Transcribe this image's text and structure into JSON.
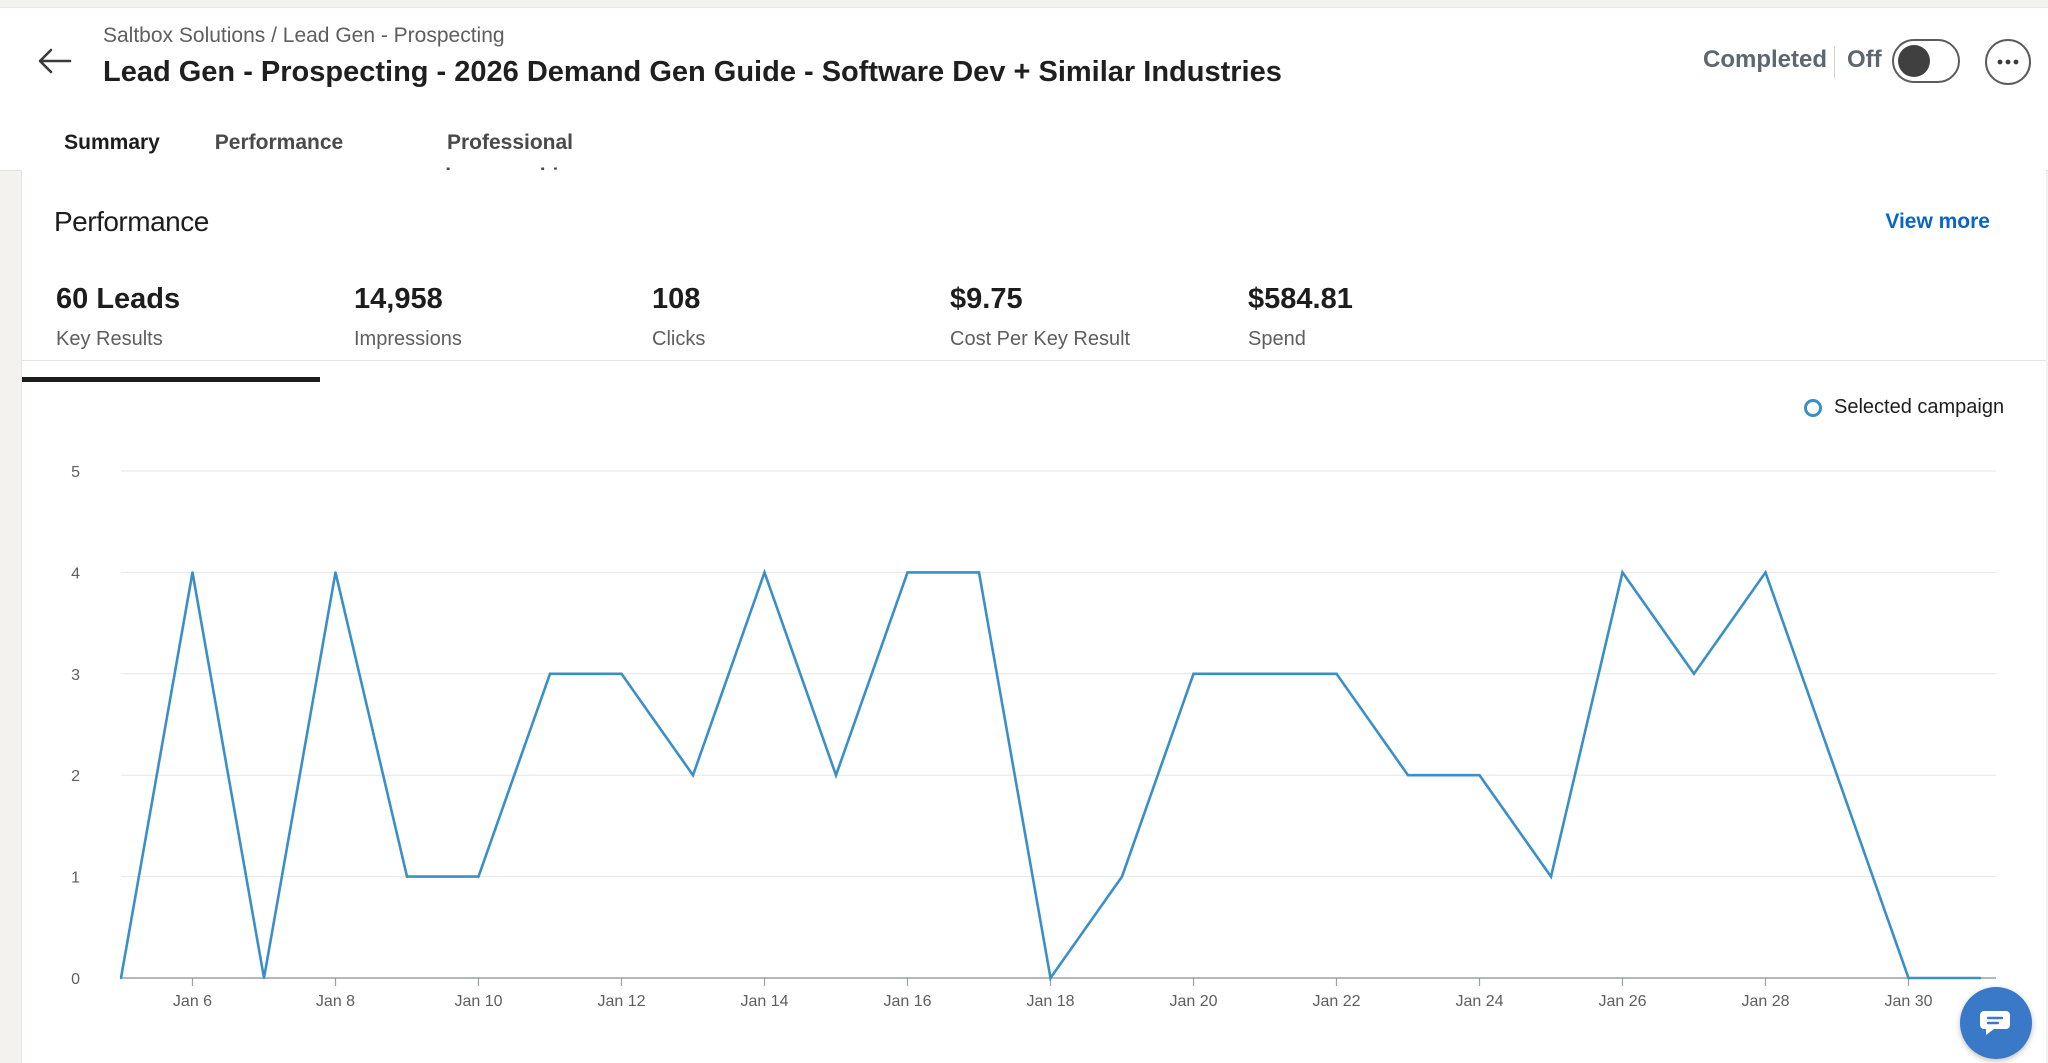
{
  "header": {
    "breadcrumb": "Saltbox Solutions / Lead Gen - Prospecting",
    "title": "Lead Gen - Prospecting - 2026 Demand Gen Guide - Software Dev + Similar Industries",
    "status": "Completed",
    "toggle_label": "Off",
    "toggle_on": false
  },
  "tabs": [
    {
      "label": "Summary",
      "active": true
    },
    {
      "label": "Performance",
      "active": false
    },
    {
      "label": "Professional demographics",
      "active": false
    }
  ],
  "performance": {
    "title": "Performance",
    "view_more": "View more",
    "metrics": [
      {
        "value": "60 Leads",
        "label": "Key Results",
        "active": true
      },
      {
        "value": "14,958",
        "label": "Impressions",
        "active": false
      },
      {
        "value": "108",
        "label": "Clicks",
        "active": false
      },
      {
        "value": "$9.75",
        "label": "Cost Per Key Result",
        "active": false
      },
      {
        "value": "$584.81",
        "label": "Spend",
        "active": false
      }
    ],
    "legend_label": "Selected campaign"
  },
  "colors": {
    "series": "#3b8fc8",
    "accent": "#0a66c2",
    "chat_button": "#3a78c8"
  },
  "chart_data": {
    "type": "line",
    "x": [
      "Jan 5",
      "Jan 6",
      "Jan 7",
      "Jan 8",
      "Jan 9",
      "Jan 10",
      "Jan 11",
      "Jan 12",
      "Jan 13",
      "Jan 14",
      "Jan 15",
      "Jan 16",
      "Jan 17",
      "Jan 18",
      "Jan 19",
      "Jan 20",
      "Jan 21",
      "Jan 22",
      "Jan 23",
      "Jan 24",
      "Jan 25",
      "Jan 26",
      "Jan 27",
      "Jan 28",
      "Jan 29",
      "Jan 30",
      "Jan 31"
    ],
    "x_tick_labels": [
      "Jan 6",
      "Jan 8",
      "Jan 10",
      "Jan 12",
      "Jan 14",
      "Jan 16",
      "Jan 18",
      "Jan 20",
      "Jan 22",
      "Jan 24",
      "Jan 26",
      "Jan 28",
      "Jan 30"
    ],
    "y_ticks": [
      0,
      1,
      2,
      3,
      4,
      5
    ],
    "ylim": [
      0,
      5
    ],
    "grid": true,
    "series": [
      {
        "name": "Selected campaign",
        "values": [
          0,
          4,
          0,
          4,
          1,
          1,
          3,
          3,
          2,
          4,
          2,
          4,
          4,
          0,
          1,
          3,
          3,
          3,
          2,
          2,
          1,
          4,
          3,
          4,
          2,
          0,
          0
        ]
      }
    ]
  }
}
